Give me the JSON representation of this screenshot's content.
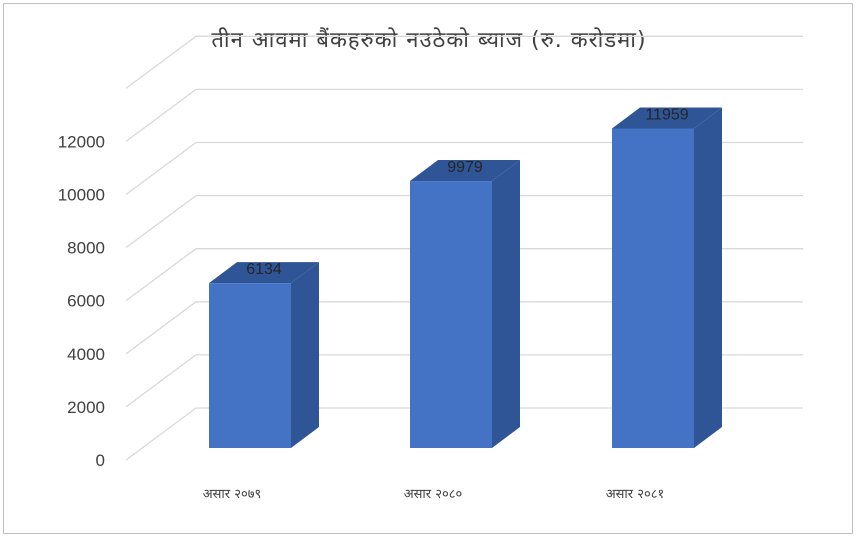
{
  "chart_data": {
    "type": "bar",
    "title": "तीन आवमा बैंकहरुको नउठेको ब्याज (रु. करोडमा)",
    "categories": [
      "असार २०७९",
      "असार २०८०",
      "असार २०८१"
    ],
    "values": [
      6134,
      9979,
      11959
    ],
    "data_labels": [
      "6134",
      "9979",
      "11959"
    ],
    "ylim": [
      0,
      14000
    ],
    "yticks": [
      0,
      2000,
      4000,
      6000,
      8000,
      10000,
      12000
    ],
    "ytick_labels": [
      "0",
      "2000",
      "4000",
      "6000",
      "8000",
      "10000",
      "12000"
    ],
    "grid": true,
    "legend": "none",
    "style": "3d-column",
    "colors": {
      "front": "#4472c4",
      "side": "#2f5597",
      "top": "#2f5597",
      "grid": "#d9d9d9"
    }
  }
}
